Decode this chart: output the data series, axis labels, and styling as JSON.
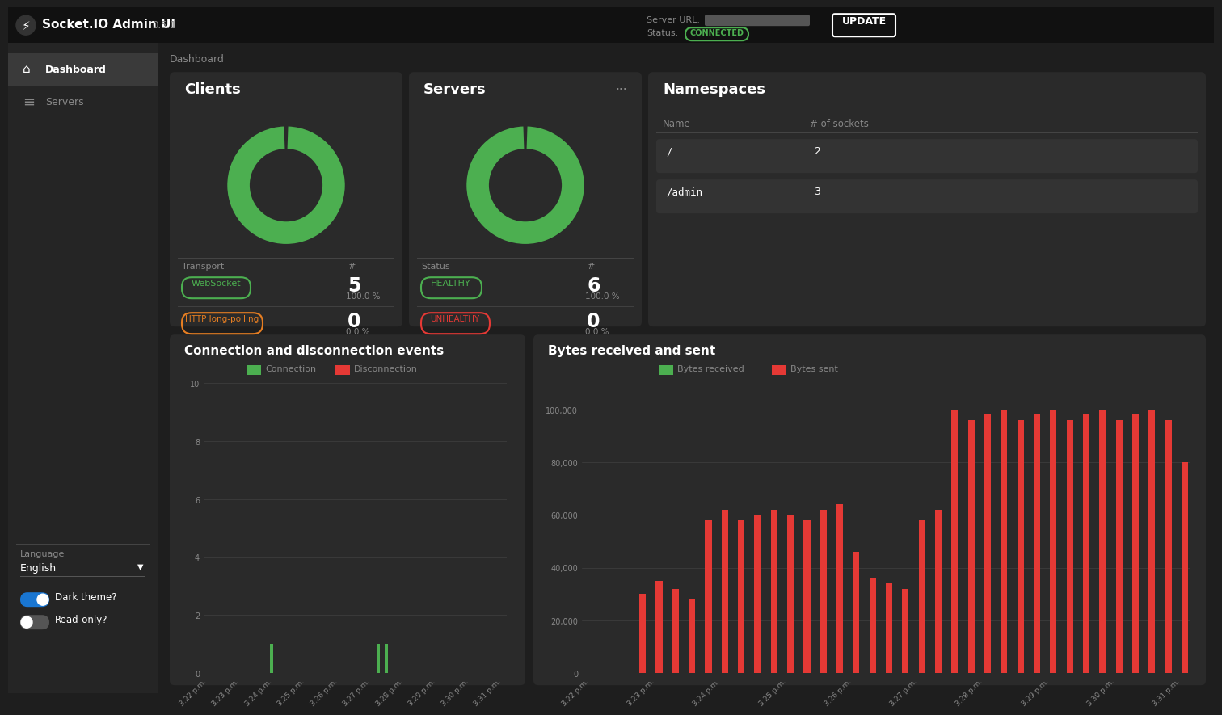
{
  "bg_dark": "#1e1e1e",
  "bg_sidebar": "#252525",
  "bg_card": "#2a2a2a",
  "bg_header": "#111111",
  "bg_highlight": "#333333",
  "text_white": "#ffffff",
  "text_gray": "#888888",
  "text_light": "#cccccc",
  "green": "#4caf50",
  "orange": "#e67e22",
  "red": "#e53935",
  "blue_toggle": "#1976d2",
  "donut_green": "#4caf50",
  "title": "Socket.IO Admin UI",
  "version": "0.5.1",
  "bytes_sent": [
    0,
    0,
    0,
    30000,
    35000,
    32000,
    28000,
    58000,
    62000,
    58000,
    60000,
    62000,
    60000,
    58000,
    62000,
    64000,
    46000,
    36000,
    34000,
    32000,
    58000,
    62000,
    100000,
    96000,
    98000,
    100000,
    96000,
    98000,
    100000,
    96000,
    98000,
    100000,
    96000,
    98000,
    100000,
    96000,
    80000
  ],
  "bytes_received": [
    0,
    0,
    0,
    0,
    0,
    0,
    0,
    0,
    0,
    0,
    0,
    0,
    0,
    0,
    0,
    0,
    0,
    0,
    0,
    0,
    0,
    0,
    0,
    0,
    0,
    0,
    0,
    0,
    0,
    0,
    0,
    0,
    0,
    0,
    0,
    0,
    0
  ],
  "conn_events": [
    0,
    0,
    0,
    0,
    0,
    0,
    0,
    0,
    1,
    0,
    0,
    0,
    0,
    0,
    0,
    0,
    0,
    0,
    0,
    0,
    0,
    1,
    1,
    0,
    0,
    0,
    0,
    0,
    0,
    0,
    0,
    0,
    0,
    0,
    0,
    0,
    0
  ],
  "disconn_events": [
    0,
    0,
    0,
    0,
    0,
    0,
    0,
    0,
    0,
    0,
    0,
    0,
    0,
    0,
    0,
    0,
    0,
    0,
    0,
    0,
    0,
    0,
    0,
    0,
    0,
    0,
    0,
    0,
    0,
    0,
    0,
    0,
    0,
    0,
    0,
    0,
    0
  ],
  "time_labels": [
    "3:22 p.m.",
    "3:23 p.m.",
    "3:24 p.m.",
    "3:25 p.m.",
    "3:26 p.m.",
    "3:27 p.m.",
    "3:28 p.m.",
    "3:29 p.m.",
    "3:30 p.m.",
    "3:31 p.m."
  ],
  "time_label_indices": [
    0,
    4,
    8,
    12,
    16,
    20,
    24,
    28,
    32,
    36
  ]
}
